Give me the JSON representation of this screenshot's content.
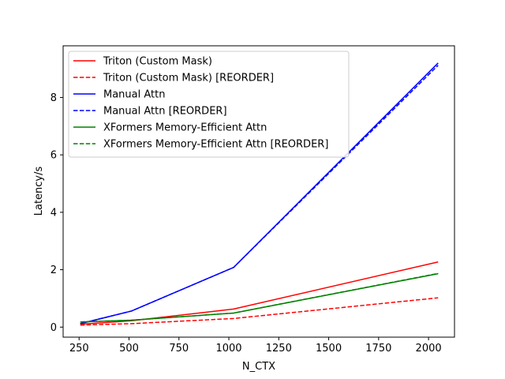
{
  "chart_data": {
    "type": "line",
    "title": "",
    "xlabel": "N_CTX",
    "ylabel": "Latency/s",
    "xlim": [
      170,
      2130
    ],
    "ylim": [
      -0.35,
      9.8
    ],
    "x_ticks": [
      250,
      500,
      750,
      1000,
      1250,
      1500,
      1750,
      2000
    ],
    "y_ticks": [
      0,
      2,
      4,
      6,
      8
    ],
    "grid": false,
    "legend_position": "top-left",
    "x": [
      256,
      512,
      1024,
      2048
    ],
    "series": [
      {
        "name": "Triton (Custom Mask)",
        "color": "#ff0000",
        "style": "solid",
        "values": [
          0.1,
          0.22,
          0.63,
          2.27
        ]
      },
      {
        "name": "Triton (Custom Mask) [REORDER]",
        "color": "#ff0000",
        "style": "dashed",
        "values": [
          0.07,
          0.12,
          0.3,
          1.02
        ]
      },
      {
        "name": "Manual Attn",
        "color": "#0000ff",
        "style": "solid",
        "values": [
          0.12,
          0.56,
          2.08,
          9.2
        ]
      },
      {
        "name": "Manual Attn [REORDER]",
        "color": "#0000ff",
        "style": "dashed",
        "values": [
          0.12,
          0.56,
          2.08,
          9.12
        ]
      },
      {
        "name": "XFormers Memory-Efficient Attn",
        "color": "#008000",
        "style": "solid",
        "values": [
          0.18,
          0.24,
          0.49,
          1.86
        ]
      },
      {
        "name": "XFormers Memory-Efficient Attn [REORDER]",
        "color": "#008000",
        "style": "dashed",
        "values": [
          0.18,
          0.24,
          0.49,
          1.87
        ]
      }
    ]
  }
}
